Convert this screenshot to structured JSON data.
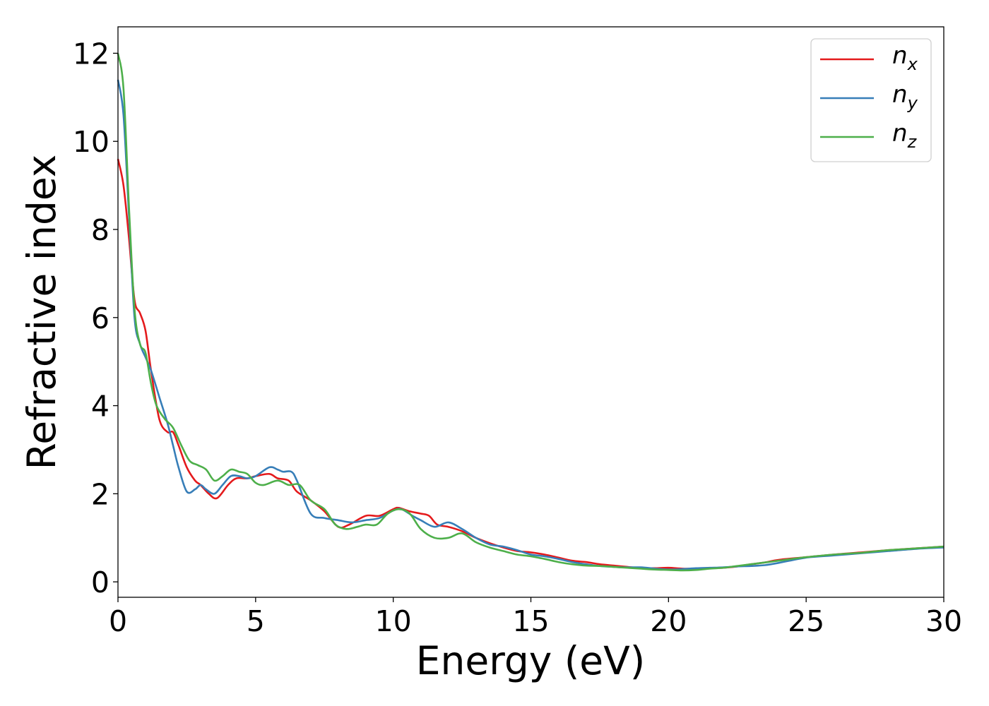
{
  "chart_data": {
    "type": "line",
    "title": "",
    "xlabel": "Energy (eV)",
    "ylabel": "Refractive index",
    "xlim": [
      0,
      30
    ],
    "ylim": [
      -0.35,
      12.6
    ],
    "xticks": [
      "0",
      "5",
      "10",
      "15",
      "20",
      "25",
      "30"
    ],
    "yticks": [
      "0",
      "2",
      "4",
      "6",
      "8",
      "10",
      "12"
    ],
    "grid": false,
    "legend_position": "top-right",
    "series": [
      {
        "name": "n",
        "subscript": "x",
        "color": "#e41a1c",
        "x": [
          0,
          0.2,
          0.4,
          0.6,
          0.8,
          1.0,
          1.2,
          1.5,
          1.8,
          2.0,
          2.2,
          2.5,
          2.8,
          3.0,
          3.3,
          3.6,
          4.0,
          4.3,
          4.7,
          5.0,
          5.5,
          5.8,
          6.2,
          6.5,
          7.0,
          7.5,
          8.0,
          8.4,
          9.0,
          9.5,
          10.0,
          10.2,
          10.6,
          11.0,
          11.3,
          11.6,
          12.0,
          12.5,
          13.0,
          13.5,
          14.0,
          14.5,
          15.0,
          15.5,
          16.0,
          16.5,
          17.0,
          17.5,
          18.0,
          18.5,
          19.0,
          19.5,
          20.0,
          20.5,
          21.0,
          21.5,
          22.0,
          22.5,
          23.0,
          23.5,
          24.0,
          25.0,
          26.0,
          27.0,
          28.0,
          29.0,
          30.0
        ],
        "y": [
          9.6,
          9.0,
          7.8,
          6.4,
          6.1,
          5.7,
          4.8,
          3.7,
          3.4,
          3.4,
          3.1,
          2.6,
          2.3,
          2.2,
          2.0,
          1.9,
          2.2,
          2.35,
          2.35,
          2.4,
          2.45,
          2.35,
          2.3,
          2.05,
          1.85,
          1.6,
          1.25,
          1.3,
          1.5,
          1.5,
          1.65,
          1.68,
          1.6,
          1.55,
          1.5,
          1.3,
          1.25,
          1.15,
          1.0,
          0.88,
          0.78,
          0.7,
          0.67,
          0.62,
          0.55,
          0.48,
          0.45,
          0.4,
          0.37,
          0.34,
          0.31,
          0.31,
          0.32,
          0.3,
          0.3,
          0.31,
          0.32,
          0.35,
          0.4,
          0.44,
          0.5,
          0.56,
          0.62,
          0.67,
          0.72,
          0.76,
          0.8
        ]
      },
      {
        "name": "n",
        "subscript": "y",
        "color": "#377eb8",
        "x": [
          0,
          0.2,
          0.4,
          0.6,
          0.8,
          1.0,
          1.2,
          1.5,
          1.8,
          2.0,
          2.2,
          2.5,
          2.8,
          3.0,
          3.2,
          3.5,
          3.8,
          4.1,
          4.4,
          4.7,
          5.0,
          5.5,
          5.8,
          6.0,
          6.3,
          6.5,
          7.0,
          7.5,
          8.0,
          8.5,
          9.0,
          9.5,
          10.0,
          10.3,
          10.7,
          11.0,
          11.5,
          12.0,
          12.5,
          13.0,
          13.5,
          14.0,
          14.5,
          15.0,
          15.5,
          16.0,
          16.5,
          17.0,
          17.5,
          18.0,
          18.5,
          19.0,
          19.5,
          20.0,
          20.5,
          21.0,
          21.5,
          22.0,
          22.5,
          23.0,
          23.5,
          24.0,
          25.0,
          26.0,
          27.0,
          28.0,
          29.0,
          30.0
        ],
        "y": [
          11.4,
          10.6,
          8.3,
          6.0,
          5.4,
          5.1,
          4.8,
          4.2,
          3.6,
          3.1,
          2.6,
          2.05,
          2.1,
          2.2,
          2.1,
          2.0,
          2.2,
          2.4,
          2.4,
          2.35,
          2.4,
          2.6,
          2.55,
          2.5,
          2.5,
          2.3,
          1.55,
          1.45,
          1.4,
          1.35,
          1.4,
          1.45,
          1.62,
          1.65,
          1.5,
          1.4,
          1.25,
          1.35,
          1.2,
          1.0,
          0.85,
          0.8,
          0.72,
          0.62,
          0.58,
          0.52,
          0.45,
          0.4,
          0.36,
          0.34,
          0.33,
          0.33,
          0.3,
          0.28,
          0.29,
          0.31,
          0.32,
          0.33,
          0.35,
          0.36,
          0.38,
          0.43,
          0.55,
          0.6,
          0.65,
          0.7,
          0.75,
          0.78
        ]
      },
      {
        "name": "n",
        "subscript": "z",
        "color": "#4daf4a",
        "x": [
          0,
          0.2,
          0.4,
          0.6,
          0.8,
          1.0,
          1.2,
          1.4,
          1.7,
          2.0,
          2.3,
          2.6,
          2.9,
          3.2,
          3.5,
          3.8,
          4.1,
          4.4,
          4.7,
          5.0,
          5.3,
          5.8,
          6.2,
          6.6,
          7.0,
          7.5,
          7.9,
          8.3,
          8.7,
          9.0,
          9.4,
          9.8,
          10.2,
          10.6,
          11.0,
          11.5,
          12.0,
          12.5,
          13.0,
          13.5,
          14.0,
          14.5,
          15.0,
          15.5,
          16.0,
          16.5,
          17.0,
          17.5,
          18.0,
          18.5,
          19.0,
          19.5,
          20.0,
          20.5,
          21.0,
          21.5,
          22.0,
          22.5,
          23.0,
          23.5,
          24.0,
          25.0,
          26.0,
          27.0,
          28.0,
          29.0,
          30.0
        ],
        "y": [
          12.0,
          11.2,
          8.5,
          6.2,
          5.4,
          5.2,
          4.5,
          4.0,
          3.7,
          3.5,
          3.1,
          2.75,
          2.65,
          2.55,
          2.3,
          2.4,
          2.55,
          2.5,
          2.45,
          2.25,
          2.2,
          2.3,
          2.2,
          2.2,
          1.85,
          1.65,
          1.3,
          1.2,
          1.25,
          1.3,
          1.3,
          1.55,
          1.65,
          1.55,
          1.2,
          1.0,
          1.0,
          1.1,
          0.9,
          0.78,
          0.7,
          0.62,
          0.58,
          0.52,
          0.45,
          0.4,
          0.37,
          0.36,
          0.34,
          0.32,
          0.3,
          0.28,
          0.27,
          0.26,
          0.27,
          0.3,
          0.32,
          0.36,
          0.4,
          0.44,
          0.48,
          0.56,
          0.62,
          0.66,
          0.72,
          0.76,
          0.8
        ]
      }
    ]
  }
}
